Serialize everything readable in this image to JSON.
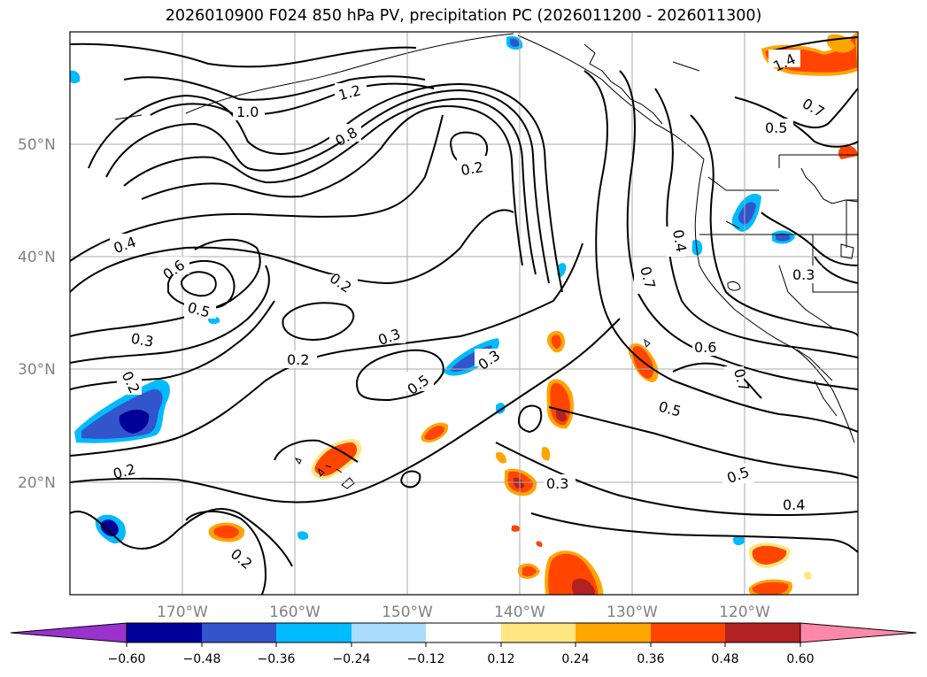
{
  "title": "2026010900 F024 850 hPa PV, precipitation PC (2026011200 - 2026011300)",
  "map": {
    "lon_range": [
      -180,
      -110
    ],
    "lat_range": [
      10,
      60
    ],
    "lat_labels": [
      "50°N",
      "40°N",
      "30°N",
      "20°N"
    ],
    "lon_labels": [
      "170°W",
      "160°W",
      "150°W",
      "140°W",
      "130°W",
      "120°W"
    ],
    "contour_labels": [
      {
        "text": "1.0"
      },
      {
        "text": "1.2"
      },
      {
        "text": "0.8"
      },
      {
        "text": "0.2"
      },
      {
        "text": "1.4"
      },
      {
        "text": "0.7"
      },
      {
        "text": "0.5"
      },
      {
        "text": "0.4"
      },
      {
        "text": "0.6"
      },
      {
        "text": "0.5"
      },
      {
        "text": "0.2"
      },
      {
        "text": "0.3"
      },
      {
        "text": "0.2"
      },
      {
        "text": "0.3"
      },
      {
        "text": "0.5"
      },
      {
        "text": "0.3"
      },
      {
        "text": "0.7"
      },
      {
        "text": "0.4"
      },
      {
        "text": "0.6"
      },
      {
        "text": "0.7"
      },
      {
        "text": "0.3"
      },
      {
        "text": "0.5"
      },
      {
        "text": "0.2"
      },
      {
        "text": "0.3"
      },
      {
        "text": "0.5"
      },
      {
        "text": "0.4"
      },
      {
        "text": "0.2"
      },
      {
        "text": "0.2"
      }
    ]
  },
  "colorbar": {
    "ticks": [
      "−0.60",
      "−0.48",
      "−0.36",
      "−0.24",
      "−0.12",
      "0.12",
      "0.24",
      "0.36",
      "0.48",
      "0.60"
    ],
    "colors": [
      "#9933cc",
      "#000099",
      "#3355cc",
      "#00bbff",
      "#aaddff",
      "#ffffff",
      "#ffe680",
      "#ffa500",
      "#ff4500",
      "#b22222",
      "#ff88aa"
    ]
  }
}
